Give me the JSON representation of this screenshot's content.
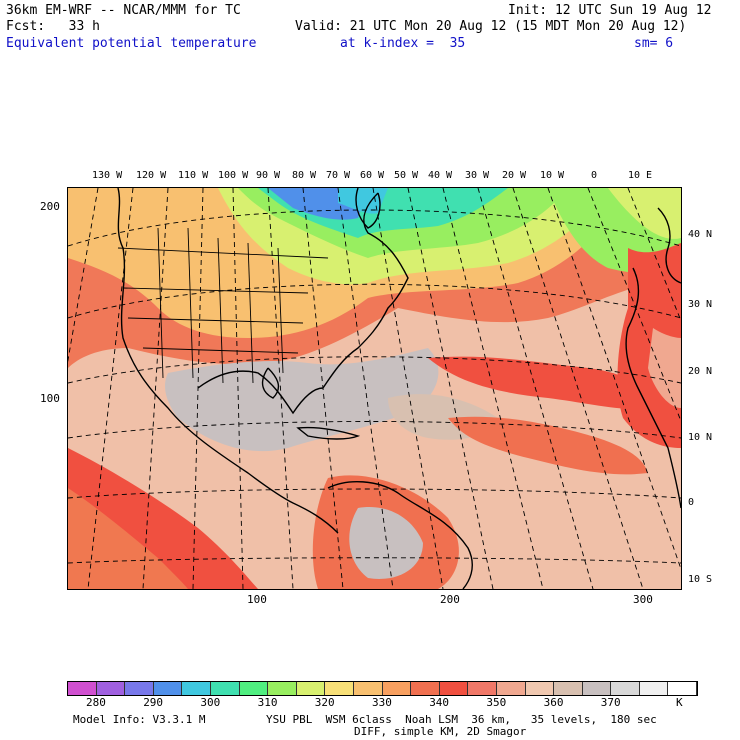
{
  "header": {
    "line1_left": "36km EM-WRF -- NCAR/MMM for TC",
    "line1_right": "Init: 12 UTC Sun 19 Aug 12",
    "line2_left": "Fcst:   33 h",
    "line2_right": "Valid: 21 UTC Mon 20 Aug 12 (15 MDT Mon 20 Aug 12)",
    "field": "Equivalent potential temperature",
    "level": "at k-index =  35",
    "smooth": "sm= 6"
  },
  "top_lon_labels": [
    "130 W",
    "120 W",
    "110 W",
    "100 W",
    "90 W",
    "80 W",
    "70 W",
    "60 W",
    "50 W",
    "40 W",
    "30 W",
    "20 W",
    "10 W",
    "0",
    "10 E"
  ],
  "right_lat_labels": [
    "40 N",
    "30 N",
    "20 N",
    "10 N",
    "0",
    "10 S"
  ],
  "left_y_labels": [
    "200",
    "100"
  ],
  "bottom_x_labels": [
    "100",
    "200",
    "300"
  ],
  "colorbar": {
    "colors": [
      "#d050d0",
      "#a060e0",
      "#7878ea",
      "#5090ea",
      "#40c8e0",
      "#40e0b0",
      "#50ee80",
      "#98ee60",
      "#d8f070",
      "#f8e078",
      "#f8c070",
      "#f8a060",
      "#f07050",
      "#f05040",
      "#f07868",
      "#f0a890",
      "#f0c8b0",
      "#d8c0b0",
      "#c8c0c0",
      "#d8d8d8",
      "#f0f0f0",
      "#ffffff"
    ],
    "labels": [
      "280",
      "290",
      "300",
      "310",
      "320",
      "330",
      "340",
      "350",
      "360",
      "370"
    ],
    "unit": "K"
  },
  "footer": {
    "line1_left": "Model Info: V3.3.1 M",
    "line1_right": "YSU PBL  WSM 6class  Noah LSM  36 km,   35 levels,  180 sec",
    "line2": "DIFF, simple KM, 2D Smagor"
  }
}
